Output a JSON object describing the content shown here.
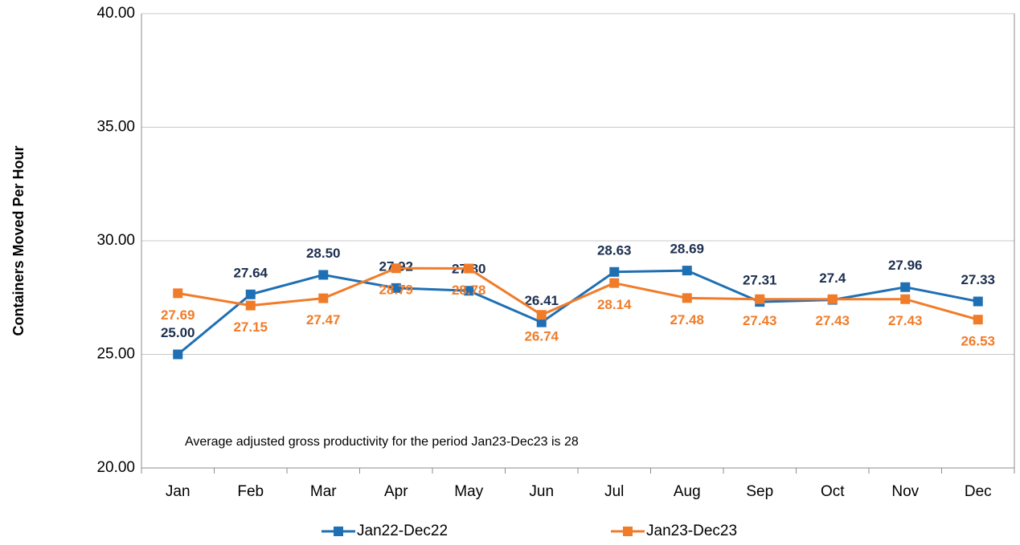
{
  "chart_data": {
    "type": "line",
    "y_label": "Containers Moved Per Hour",
    "annotation": "Average adjusted gross productivity for the period Jan23-Dec23 is 28",
    "categories": [
      "Jan",
      "Feb",
      "Mar",
      "Apr",
      "May",
      "Jun",
      "Jul",
      "Aug",
      "Sep",
      "Oct",
      "Nov",
      "Dec"
    ],
    "series": [
      {
        "name": "Jan22-Dec22",
        "color": "#1f6fb4",
        "label_color": "#1c2f4f",
        "values": [
          25.0,
          27.64,
          28.5,
          27.92,
          27.8,
          26.41,
          28.63,
          28.69,
          27.31,
          27.4,
          27.96,
          27.33
        ],
        "value_labels": [
          "25.00",
          "27.64",
          "28.50",
          "27.92",
          "27.80",
          "26.41",
          "28.63",
          "28.69",
          "27.31",
          "27.4",
          "27.96",
          "27.33"
        ]
      },
      {
        "name": "Jan23-Dec23",
        "color": "#f07c2a",
        "label_color": "#f07c2a",
        "values": [
          27.69,
          27.15,
          27.47,
          28.79,
          28.78,
          26.74,
          28.14,
          27.48,
          27.43,
          27.43,
          27.43,
          26.53
        ],
        "value_labels": [
          "27.69",
          "27.15",
          "27.47",
          "28.79",
          "28.78",
          "26.74",
          "28.14",
          "27.48",
          "27.43",
          "27.43",
          "27.43",
          "26.53"
        ]
      }
    ],
    "ylim": [
      20,
      40
    ],
    "yticks": [
      {
        "value": 20,
        "label": "20.00"
      },
      {
        "value": 25,
        "label": "25.00"
      },
      {
        "value": 30,
        "label": "30.00"
      },
      {
        "value": 35,
        "label": "35.00"
      },
      {
        "value": 40,
        "label": "40.00"
      }
    ],
    "grid": true,
    "legend": "bottom"
  }
}
